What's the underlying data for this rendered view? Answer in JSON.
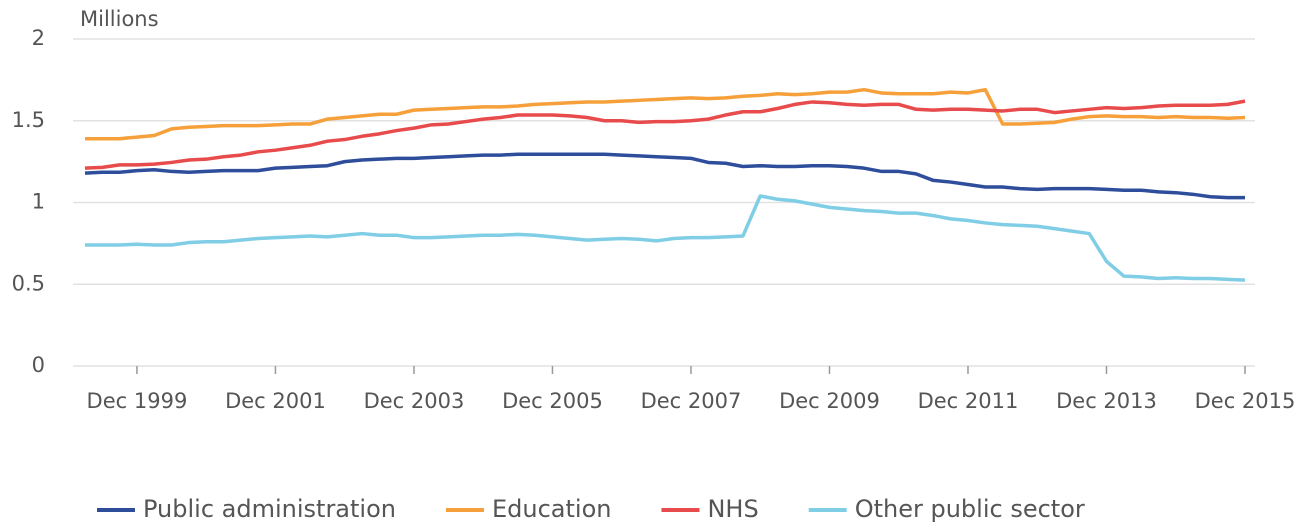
{
  "chart_data": {
    "type": "line",
    "y_label": "Millions",
    "categories": [
      null,
      null,
      null,
      "Dec 1999",
      null,
      null,
      null,
      null,
      null,
      null,
      null,
      "Dec 2001",
      null,
      null,
      null,
      null,
      null,
      null,
      null,
      "Dec 2003",
      null,
      null,
      null,
      null,
      null,
      null,
      null,
      "Dec 2005",
      null,
      null,
      null,
      null,
      null,
      null,
      null,
      "Dec 2007",
      null,
      null,
      null,
      null,
      null,
      null,
      null,
      "Dec 2009",
      null,
      null,
      null,
      null,
      null,
      null,
      null,
      "Dec 2011",
      null,
      null,
      null,
      null,
      null,
      null,
      null,
      "Dec 2013",
      null,
      null,
      null,
      null,
      null,
      null,
      null,
      "Dec 2015"
    ],
    "series": [
      {
        "name": "Public administration",
        "color": "#2e4e9c",
        "values": [
          1.18,
          1.185,
          1.185,
          1.195,
          1.2,
          1.19,
          1.185,
          1.19,
          1.195,
          1.195,
          1.195,
          1.21,
          1.215,
          1.22,
          1.225,
          1.25,
          1.26,
          1.265,
          1.27,
          1.27,
          1.275,
          1.28,
          1.285,
          1.29,
          1.29,
          1.295,
          1.295,
          1.295,
          1.295,
          1.295,
          1.295,
          1.29,
          1.285,
          1.28,
          1.275,
          1.27,
          1.245,
          1.24,
          1.22,
          1.225,
          1.22,
          1.22,
          1.225,
          1.225,
          1.22,
          1.21,
          1.19,
          1.19,
          1.175,
          1.135,
          1.125,
          1.11,
          1.095,
          1.095,
          1.085,
          1.08,
          1.085,
          1.085,
          1.085,
          1.08,
          1.075,
          1.075,
          1.065,
          1.06,
          1.05,
          1.035,
          1.03,
          1.03
        ]
      },
      {
        "name": "Education",
        "color": "#f5a03b",
        "values": [
          1.39,
          1.39,
          1.39,
          1.4,
          1.41,
          1.45,
          1.46,
          1.465,
          1.47,
          1.47,
          1.47,
          1.475,
          1.48,
          1.48,
          1.51,
          1.52,
          1.53,
          1.54,
          1.54,
          1.565,
          1.57,
          1.575,
          1.58,
          1.585,
          1.585,
          1.59,
          1.6,
          1.605,
          1.61,
          1.615,
          1.615,
          1.62,
          1.625,
          1.63,
          1.635,
          1.64,
          1.635,
          1.64,
          1.65,
          1.655,
          1.665,
          1.66,
          1.665,
          1.675,
          1.675,
          1.69,
          1.67,
          1.665,
          1.665,
          1.665,
          1.675,
          1.67,
          1.69,
          1.48,
          1.48,
          1.485,
          1.49,
          1.51,
          1.525,
          1.53,
          1.525,
          1.525,
          1.52,
          1.525,
          1.52,
          1.52,
          1.515,
          1.52
        ]
      },
      {
        "name": "NHS",
        "color": "#e84b4b",
        "values": [
          1.21,
          1.215,
          1.23,
          1.23,
          1.235,
          1.245,
          1.26,
          1.265,
          1.28,
          1.29,
          1.31,
          1.32,
          1.335,
          1.35,
          1.375,
          1.385,
          1.405,
          1.42,
          1.44,
          1.455,
          1.475,
          1.48,
          1.495,
          1.51,
          1.52,
          1.535,
          1.535,
          1.535,
          1.53,
          1.52,
          1.5,
          1.5,
          1.49,
          1.495,
          1.495,
          1.5,
          1.51,
          1.535,
          1.555,
          1.555,
          1.575,
          1.6,
          1.615,
          1.61,
          1.6,
          1.595,
          1.6,
          1.6,
          1.57,
          1.565,
          1.57,
          1.57,
          1.565,
          1.56,
          1.57,
          1.57,
          1.55,
          1.56,
          1.57,
          1.58,
          1.575,
          1.58,
          1.59,
          1.595,
          1.595,
          1.595,
          1.6,
          1.62
        ]
      },
      {
        "name": "Other public sector",
        "color": "#80cde6",
        "values": [
          0.74,
          0.74,
          0.74,
          0.745,
          0.74,
          0.74,
          0.755,
          0.76,
          0.76,
          0.77,
          0.78,
          0.785,
          0.79,
          0.795,
          0.79,
          0.8,
          0.81,
          0.8,
          0.8,
          0.785,
          0.785,
          0.79,
          0.795,
          0.8,
          0.8,
          0.805,
          0.8,
          0.79,
          0.78,
          0.77,
          0.775,
          0.78,
          0.775,
          0.765,
          0.78,
          0.785,
          0.785,
          0.79,
          0.795,
          1.04,
          1.02,
          1.01,
          0.99,
          0.97,
          0.96,
          0.95,
          0.945,
          0.935,
          0.935,
          0.92,
          0.9,
          0.89,
          0.875,
          0.865,
          0.86,
          0.855,
          0.84,
          0.825,
          0.81,
          0.64,
          0.55,
          0.545,
          0.535,
          0.54,
          0.535,
          0.535,
          0.53,
          0.525
        ]
      }
    ],
    "ylim": [
      0,
      2
    ],
    "yticks": [
      0,
      0.5,
      1,
      1.5,
      2
    ],
    "grid": true,
    "legend": "bottom"
  }
}
